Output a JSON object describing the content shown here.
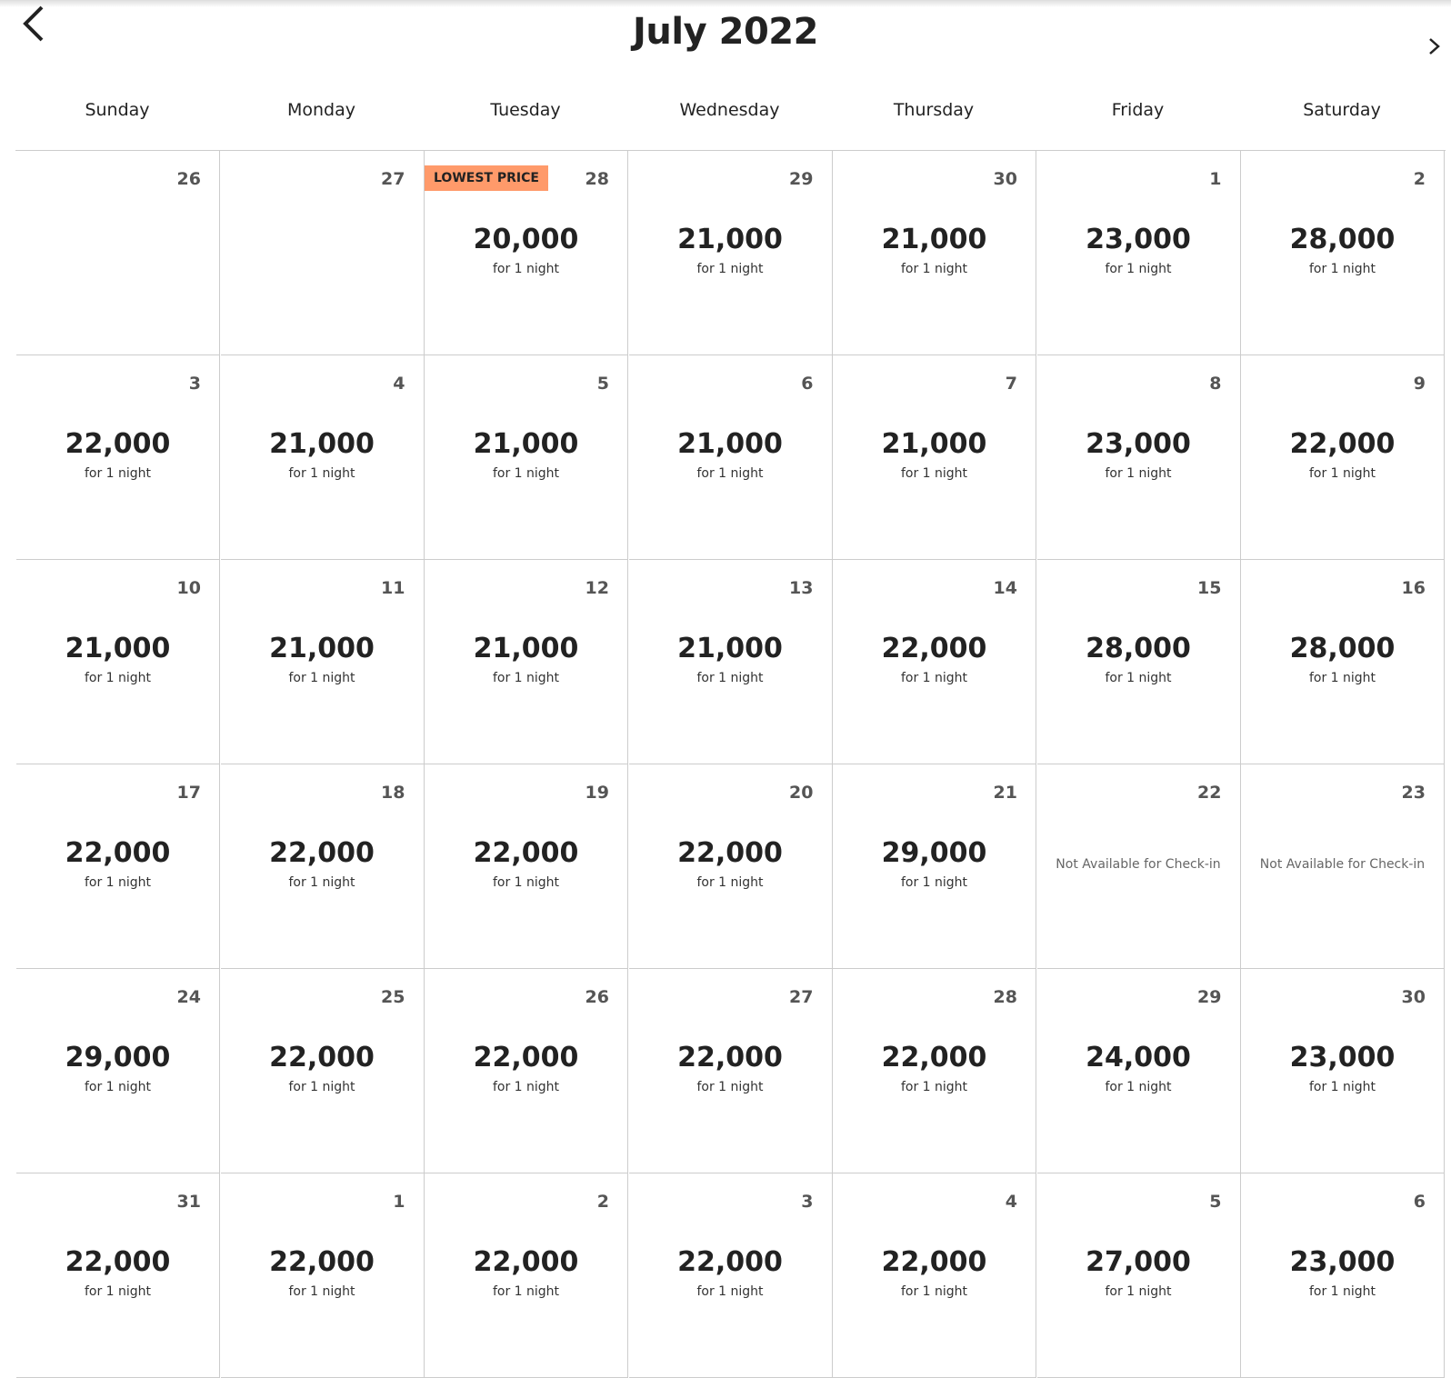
{
  "header": {
    "title": "July 2022"
  },
  "weekdays": [
    "Sunday",
    "Monday",
    "Tuesday",
    "Wednesday",
    "Thursday",
    "Friday",
    "Saturday"
  ],
  "weeks": [
    [
      {
        "day": 26
      },
      {
        "day": 27
      },
      {
        "day": 28,
        "badge": "LOWEST PRICE",
        "price": "20,000",
        "note": "for 1 night"
      },
      {
        "day": 29,
        "price": "21,000",
        "note": "for 1 night"
      },
      {
        "day": 30,
        "price": "21,000",
        "note": "for 1 night"
      },
      {
        "day": 1,
        "price": "23,000",
        "note": "for 1 night"
      },
      {
        "day": 2,
        "price": "28,000",
        "note": "for 1 night"
      }
    ],
    [
      {
        "day": 3,
        "price": "22,000",
        "note": "for 1 night"
      },
      {
        "day": 4,
        "price": "21,000",
        "note": "for 1 night"
      },
      {
        "day": 5,
        "price": "21,000",
        "note": "for 1 night"
      },
      {
        "day": 6,
        "price": "21,000",
        "note": "for 1 night"
      },
      {
        "day": 7,
        "price": "21,000",
        "note": "for 1 night"
      },
      {
        "day": 8,
        "price": "23,000",
        "note": "for 1 night"
      },
      {
        "day": 9,
        "price": "22,000",
        "note": "for 1 night"
      }
    ],
    [
      {
        "day": 10,
        "price": "21,000",
        "note": "for 1 night"
      },
      {
        "day": 11,
        "price": "21,000",
        "note": "for 1 night"
      },
      {
        "day": 12,
        "price": "21,000",
        "note": "for 1 night"
      },
      {
        "day": 13,
        "price": "21,000",
        "note": "for 1 night"
      },
      {
        "day": 14,
        "price": "22,000",
        "note": "for 1 night"
      },
      {
        "day": 15,
        "price": "28,000",
        "note": "for 1 night"
      },
      {
        "day": 16,
        "price": "28,000",
        "note": "for 1 night"
      }
    ],
    [
      {
        "day": 17,
        "price": "22,000",
        "note": "for 1 night"
      },
      {
        "day": 18,
        "price": "22,000",
        "note": "for 1 night"
      },
      {
        "day": 19,
        "price": "22,000",
        "note": "for 1 night"
      },
      {
        "day": 20,
        "price": "22,000",
        "note": "for 1 night"
      },
      {
        "day": 21,
        "price": "29,000",
        "note": "for 1 night"
      },
      {
        "day": 22,
        "note": "Not Available for Check-in"
      },
      {
        "day": 23,
        "note": "Not Available for Check-in"
      }
    ],
    [
      {
        "day": 24,
        "price": "29,000",
        "note": "for 1 night"
      },
      {
        "day": 25,
        "price": "22,000",
        "note": "for 1 night"
      },
      {
        "day": 26,
        "price": "22,000",
        "note": "for 1 night"
      },
      {
        "day": 27,
        "price": "22,000",
        "note": "for 1 night"
      },
      {
        "day": 28,
        "price": "22,000",
        "note": "for 1 night"
      },
      {
        "day": 29,
        "price": "24,000",
        "note": "for 1 night"
      },
      {
        "day": 30,
        "price": "23,000",
        "note": "for 1 night"
      }
    ],
    [
      {
        "day": 31,
        "price": "22,000",
        "note": "for 1 night"
      },
      {
        "day": 1,
        "price": "22,000",
        "note": "for 1 night"
      },
      {
        "day": 2,
        "price": "22,000",
        "note": "for 1 night"
      },
      {
        "day": 3,
        "price": "22,000",
        "note": "for 1 night"
      },
      {
        "day": 4,
        "price": "22,000",
        "note": "for 1 night"
      },
      {
        "day": 5,
        "price": "27,000",
        "note": "for 1 night"
      },
      {
        "day": 6,
        "price": "23,000",
        "note": "for 1 night"
      }
    ]
  ]
}
